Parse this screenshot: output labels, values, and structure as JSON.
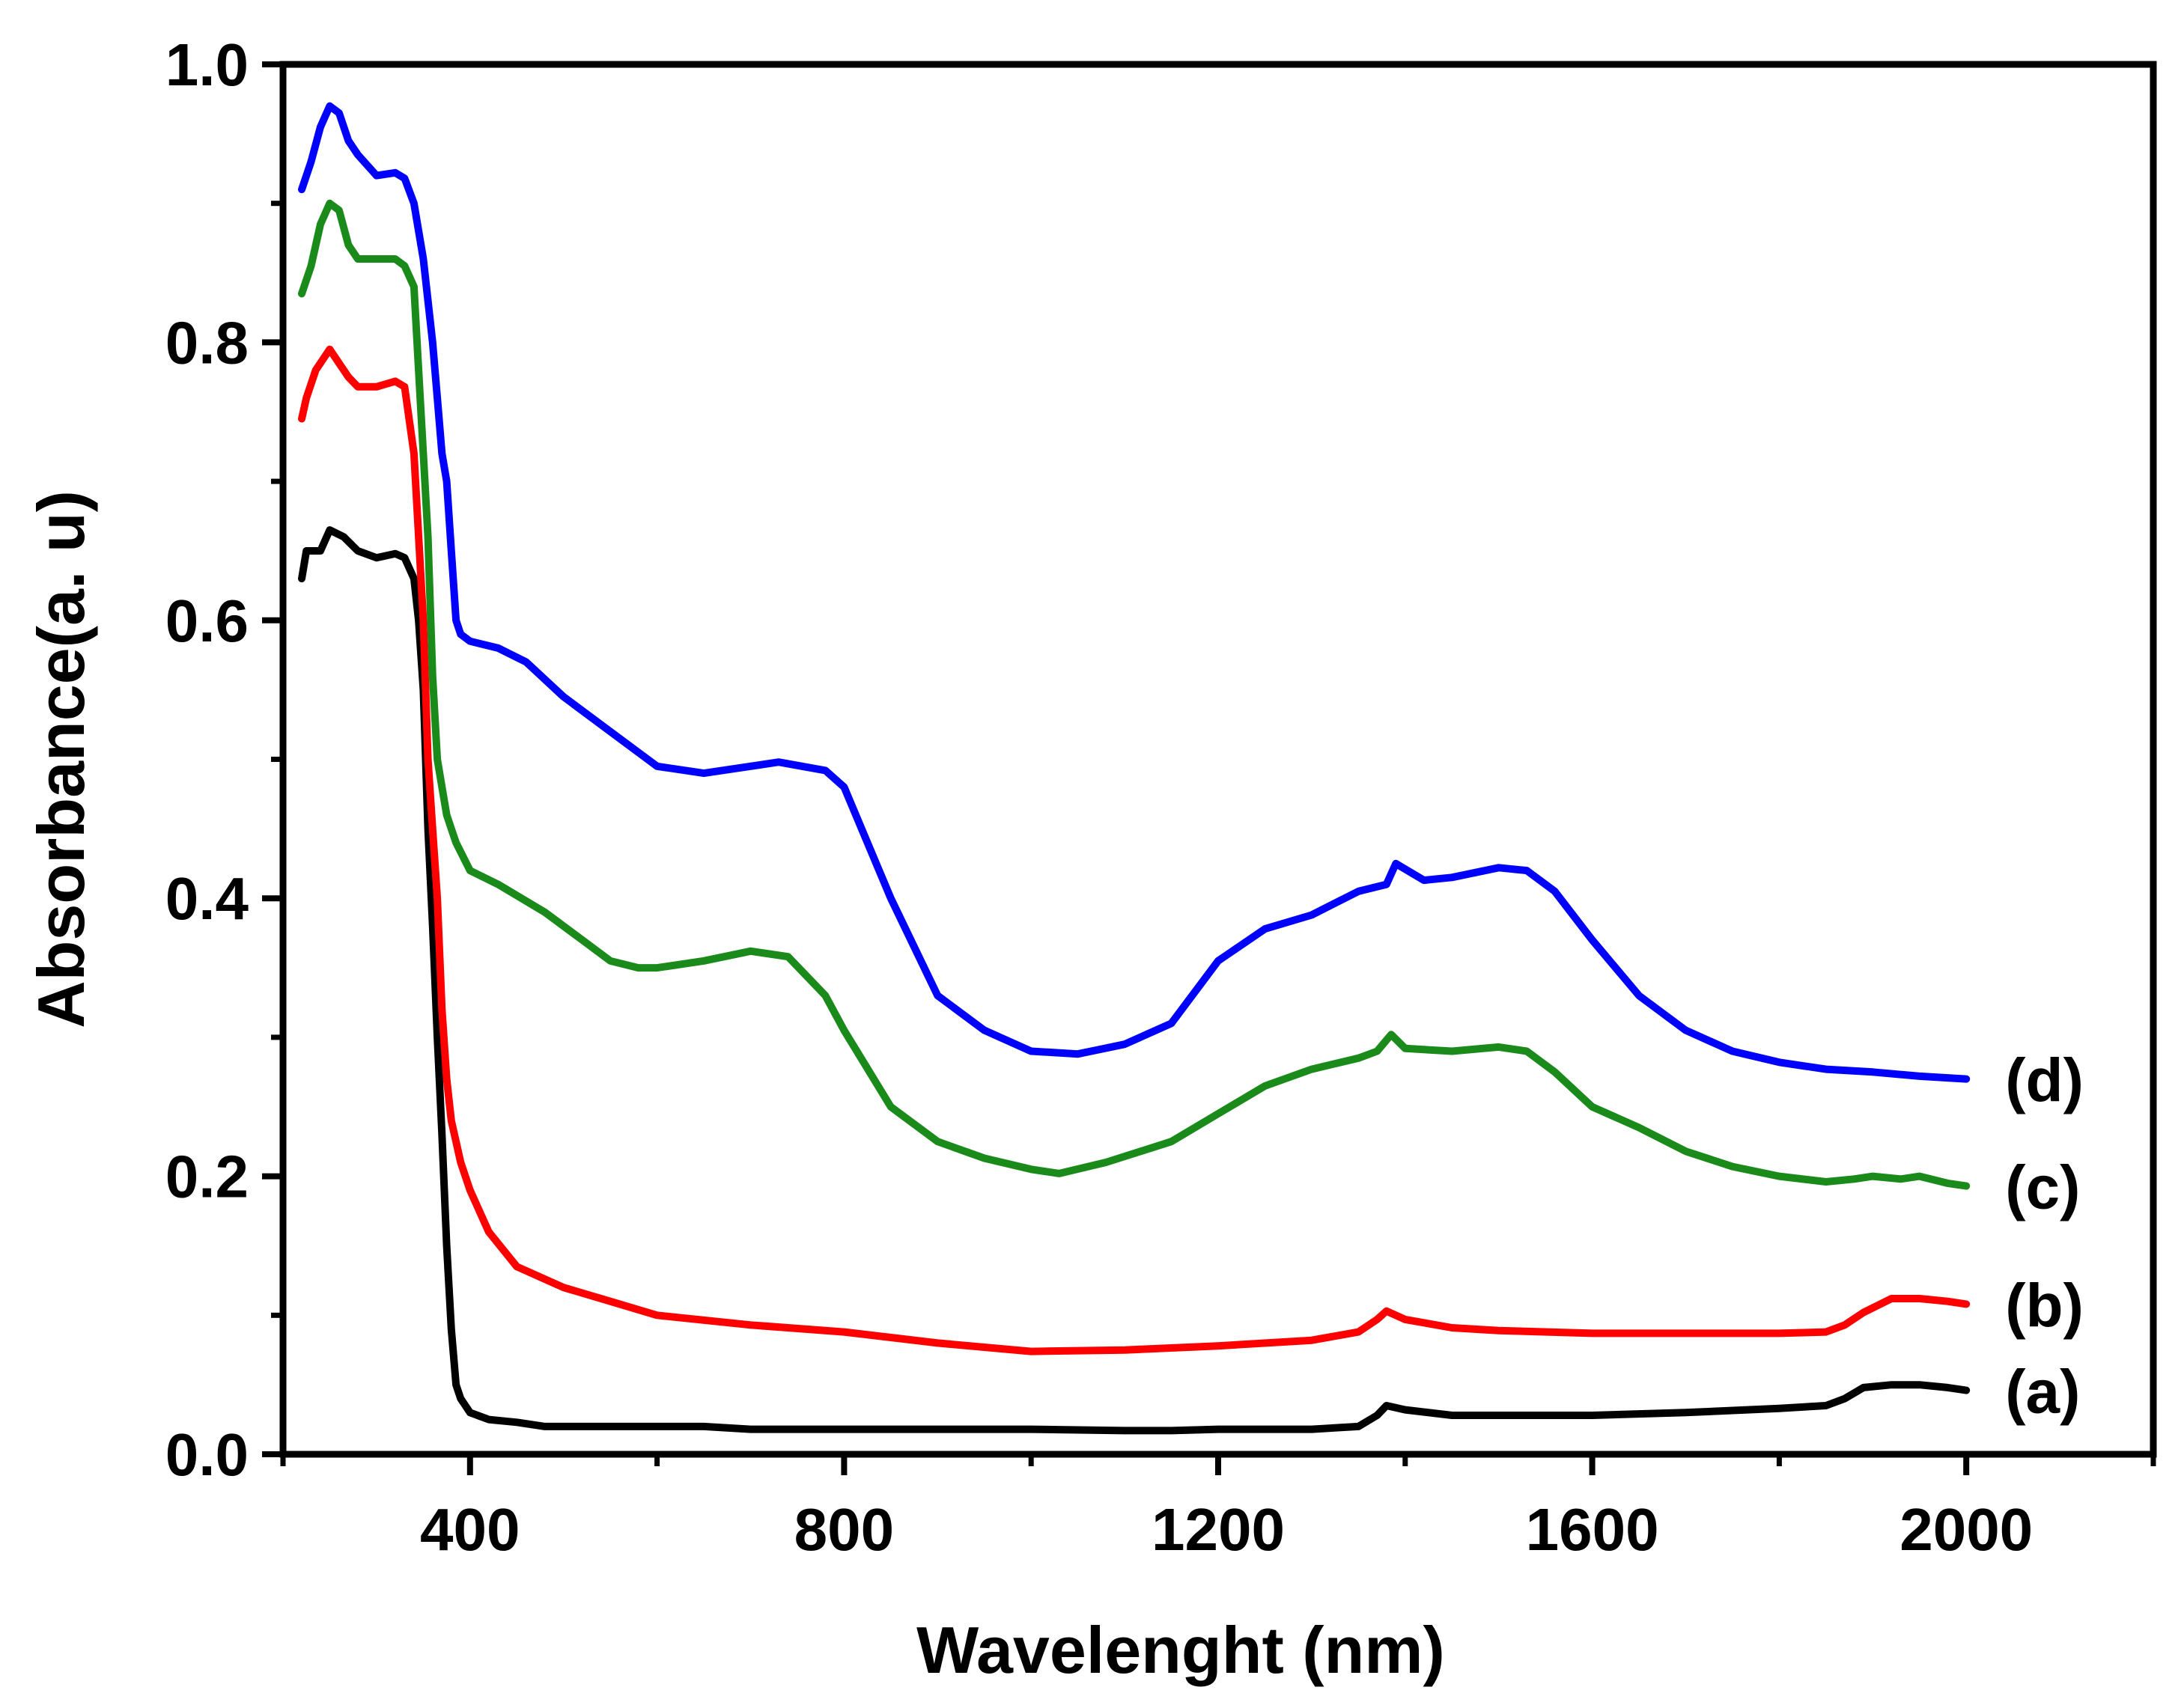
{
  "chart_data": {
    "type": "line",
    "title": "",
    "xlabel": "Wavelenght (nm)",
    "ylabel": "Absorbance(a. u)",
    "xlim": [
      200,
      2200
    ],
    "ylim": [
      0.0,
      1.0
    ],
    "xticks": [
      400,
      800,
      1200,
      1600,
      2000
    ],
    "xtick_labels": [
      "400",
      "800",
      "1200",
      "1600",
      "2000"
    ],
    "yticks": [
      0.0,
      0.2,
      0.4,
      0.6,
      0.8,
      1.0
    ],
    "ytick_labels": [
      "0.0",
      "0.2",
      "0.4",
      "0.6",
      "0.8",
      "1.0"
    ],
    "grid": false,
    "legend": "inline labels at right end of each series",
    "series": [
      {
        "name": "(a)",
        "color": "#000000",
        "x": [
          220,
          225,
          240,
          250,
          265,
          280,
          300,
          320,
          330,
          340,
          345,
          350,
          355,
          360,
          365,
          370,
          375,
          380,
          385,
          390,
          395,
          400,
          420,
          450,
          480,
          550,
          650,
          700,
          800,
          950,
          1000,
          1100,
          1150,
          1200,
          1300,
          1350,
          1370,
          1380,
          1400,
          1450,
          1500,
          1600,
          1700,
          1800,
          1850,
          1870,
          1890,
          1920,
          1950,
          1980,
          2000
        ],
        "y": [
          0.63,
          0.65,
          0.65,
          0.665,
          0.66,
          0.65,
          0.645,
          0.648,
          0.645,
          0.63,
          0.6,
          0.55,
          0.45,
          0.38,
          0.3,
          0.23,
          0.15,
          0.09,
          0.05,
          0.04,
          0.035,
          0.03,
          0.025,
          0.023,
          0.02,
          0.02,
          0.02,
          0.018,
          0.018,
          0.018,
          0.018,
          0.017,
          0.017,
          0.018,
          0.018,
          0.02,
          0.028,
          0.035,
          0.032,
          0.028,
          0.028,
          0.028,
          0.03,
          0.033,
          0.035,
          0.04,
          0.048,
          0.05,
          0.05,
          0.048,
          0.046
        ]
      },
      {
        "name": "(b)",
        "color": "#ff0000",
        "x": [
          220,
          225,
          235,
          250,
          260,
          270,
          280,
          300,
          320,
          330,
          340,
          350,
          355,
          360,
          365,
          370,
          375,
          380,
          390,
          400,
          420,
          450,
          500,
          550,
          600,
          700,
          800,
          900,
          1000,
          1100,
          1200,
          1300,
          1350,
          1370,
          1380,
          1400,
          1450,
          1500,
          1600,
          1700,
          1800,
          1850,
          1870,
          1890,
          1920,
          1950,
          1980,
          2000
        ],
        "y": [
          0.745,
          0.76,
          0.78,
          0.795,
          0.785,
          0.775,
          0.768,
          0.768,
          0.772,
          0.768,
          0.72,
          0.6,
          0.5,
          0.45,
          0.4,
          0.32,
          0.27,
          0.24,
          0.21,
          0.19,
          0.16,
          0.135,
          0.12,
          0.11,
          0.1,
          0.093,
          0.088,
          0.08,
          0.074,
          0.075,
          0.078,
          0.082,
          0.088,
          0.097,
          0.103,
          0.097,
          0.091,
          0.089,
          0.087,
          0.087,
          0.087,
          0.088,
          0.093,
          0.102,
          0.112,
          0.112,
          0.11,
          0.108
        ]
      },
      {
        "name": "(c)",
        "color": "#1a8a1a",
        "x": [
          220,
          230,
          240,
          250,
          260,
          270,
          280,
          300,
          320,
          330,
          340,
          345,
          350,
          355,
          360,
          365,
          370,
          375,
          380,
          385,
          400,
          430,
          480,
          520,
          550,
          580,
          600,
          650,
          700,
          740,
          780,
          800,
          850,
          900,
          950,
          1000,
          1030,
          1080,
          1150,
          1200,
          1250,
          1300,
          1350,
          1370,
          1385,
          1400,
          1450,
          1500,
          1530,
          1560,
          1600,
          1650,
          1700,
          1750,
          1800,
          1850,
          1880,
          1900,
          1930,
          1950,
          1980,
          2000
        ],
        "y": [
          0.835,
          0.855,
          0.885,
          0.9,
          0.895,
          0.87,
          0.86,
          0.86,
          0.86,
          0.855,
          0.84,
          0.78,
          0.72,
          0.66,
          0.56,
          0.5,
          0.48,
          0.46,
          0.45,
          0.44,
          0.42,
          0.41,
          0.39,
          0.37,
          0.355,
          0.35,
          0.35,
          0.355,
          0.362,
          0.358,
          0.33,
          0.305,
          0.25,
          0.225,
          0.213,
          0.205,
          0.202,
          0.21,
          0.225,
          0.245,
          0.265,
          0.277,
          0.285,
          0.29,
          0.302,
          0.292,
          0.29,
          0.293,
          0.29,
          0.275,
          0.25,
          0.235,
          0.218,
          0.207,
          0.2,
          0.196,
          0.198,
          0.2,
          0.198,
          0.2,
          0.195,
          0.193
        ]
      },
      {
        "name": "(d)",
        "color": "#0000ff",
        "x": [
          220,
          230,
          240,
          250,
          260,
          270,
          280,
          300,
          320,
          330,
          340,
          350,
          355,
          360,
          365,
          370,
          375,
          380,
          385,
          390,
          400,
          430,
          460,
          500,
          550,
          600,
          650,
          700,
          730,
          780,
          800,
          850,
          900,
          950,
          1000,
          1050,
          1100,
          1150,
          1200,
          1250,
          1300,
          1350,
          1380,
          1390,
          1420,
          1450,
          1500,
          1530,
          1560,
          1600,
          1650,
          1700,
          1750,
          1800,
          1850,
          1900,
          1950,
          2000
        ],
        "y": [
          0.91,
          0.93,
          0.955,
          0.97,
          0.965,
          0.945,
          0.935,
          0.92,
          0.922,
          0.918,
          0.9,
          0.86,
          0.83,
          0.8,
          0.76,
          0.72,
          0.7,
          0.65,
          0.6,
          0.59,
          0.585,
          0.58,
          0.57,
          0.545,
          0.52,
          0.495,
          0.49,
          0.495,
          0.498,
          0.492,
          0.48,
          0.4,
          0.33,
          0.305,
          0.29,
          0.288,
          0.295,
          0.31,
          0.355,
          0.378,
          0.388,
          0.405,
          0.41,
          0.425,
          0.413,
          0.415,
          0.422,
          0.42,
          0.405,
          0.37,
          0.33,
          0.305,
          0.29,
          0.282,
          0.277,
          0.275,
          0.272,
          0.27
        ]
      }
    ]
  }
}
